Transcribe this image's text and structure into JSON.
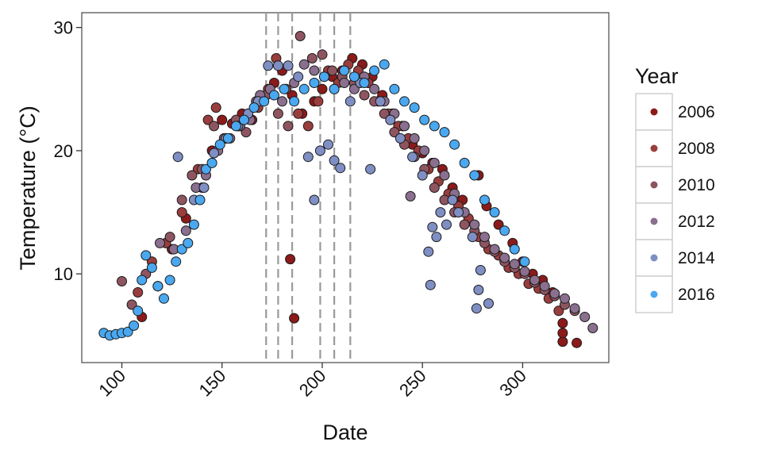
{
  "chart_data": {
    "type": "scatter",
    "xlabel": "Date",
    "ylabel": "Temperature (°C)",
    "xlim": [
      80,
      343
    ],
    "ylim": [
      2.8,
      31.2
    ],
    "x_ticks": [
      100,
      150,
      200,
      250,
      300
    ],
    "y_ticks": [
      10,
      20,
      30
    ],
    "grid": false,
    "legend": {
      "title": "Year",
      "placement": "right",
      "items": [
        {
          "label": "2006",
          "color": "#8b1a1a"
        },
        {
          "label": "2008",
          "color": "#9a3d3d"
        },
        {
          "label": "2010",
          "color": "#8e5561"
        },
        {
          "label": "2012",
          "color": "#8a6f8f"
        },
        {
          "label": "2014",
          "color": "#7f8fc4"
        },
        {
          "label": "2016",
          "color": "#4aa8f0"
        }
      ]
    },
    "vlines": [
      172,
      178,
      185,
      199,
      206,
      214
    ],
    "series": [
      {
        "name": "2006",
        "color": "#8b1a1a",
        "points": [
          [
            110,
            6.5
          ],
          [
            118,
            9
          ],
          [
            125,
            12
          ],
          [
            132,
            14.5
          ],
          [
            140,
            17
          ],
          [
            145,
            20
          ],
          [
            150,
            22.5
          ],
          [
            155,
            22.2
          ],
          [
            160,
            23
          ],
          [
            165,
            22.5
          ],
          [
            170,
            24
          ],
          [
            176,
            25.5
          ],
          [
            180,
            26.5
          ],
          [
            185,
            24.5
          ],
          [
            190,
            23
          ],
          [
            196,
            24
          ],
          [
            200,
            25
          ],
          [
            205,
            26
          ],
          [
            210,
            26.5
          ],
          [
            215,
            27.5
          ],
          [
            220,
            27
          ],
          [
            225,
            26
          ],
          [
            230,
            24.5
          ],
          [
            235,
            23
          ],
          [
            240,
            22
          ],
          [
            245,
            20.5
          ],
          [
            250,
            19.8
          ],
          [
            255,
            19
          ],
          [
            260,
            18.5
          ],
          [
            265,
            17
          ],
          [
            270,
            16
          ],
          [
            278,
            18
          ],
          [
            282,
            15.5
          ],
          [
            288,
            14
          ],
          [
            295,
            12.5
          ],
          [
            300,
            11
          ],
          [
            305,
            10
          ],
          [
            310,
            9.5
          ],
          [
            315,
            8.5
          ],
          [
            320,
            4.5
          ],
          [
            320,
            5.2
          ],
          [
            320,
            6
          ],
          [
            327,
            4.4
          ],
          [
            184,
            11.2
          ],
          [
            186,
            6.4
          ]
        ]
      },
      {
        "name": "2008",
        "color": "#9a3d3d",
        "points": [
          [
            108,
            8.5
          ],
          [
            115,
            11
          ],
          [
            122,
            12.5
          ],
          [
            130,
            15
          ],
          [
            138,
            18.5
          ],
          [
            143,
            22.5
          ],
          [
            147,
            23.5
          ],
          [
            152,
            21
          ],
          [
            158,
            22
          ],
          [
            163,
            23
          ],
          [
            168,
            23.5
          ],
          [
            173,
            25
          ],
          [
            177,
            27.5
          ],
          [
            182,
            25
          ],
          [
            188,
            23
          ],
          [
            193,
            22
          ],
          [
            198,
            24
          ],
          [
            203,
            26.5
          ],
          [
            208,
            25.5
          ],
          [
            213,
            27
          ],
          [
            218,
            26.5
          ],
          [
            223,
            25.5
          ],
          [
            228,
            24
          ],
          [
            233,
            23
          ],
          [
            238,
            22
          ],
          [
            243,
            21
          ],
          [
            248,
            20
          ],
          [
            253,
            18.5
          ],
          [
            258,
            17.5
          ],
          [
            263,
            16.5
          ],
          [
            268,
            15.5
          ],
          [
            273,
            14.5
          ],
          [
            278,
            13
          ],
          [
            283,
            12
          ],
          [
            288,
            11.5
          ],
          [
            293,
            10.5
          ],
          [
            298,
            10
          ],
          [
            303,
            9.2
          ],
          [
            308,
            8.8
          ],
          [
            313,
            8
          ],
          [
            318,
            7
          ]
        ]
      },
      {
        "name": "2010",
        "color": "#8e5561",
        "points": [
          [
            100,
            9.4
          ],
          [
            105,
            7.5
          ],
          [
            112,
            10
          ],
          [
            118,
            9
          ],
          [
            124,
            13
          ],
          [
            130,
            16
          ],
          [
            135,
            18
          ],
          [
            140,
            18.5
          ],
          [
            146,
            22
          ],
          [
            151,
            21
          ],
          [
            157,
            22.5
          ],
          [
            162,
            21.5
          ],
          [
            167,
            24
          ],
          [
            172,
            24.5
          ],
          [
            178,
            23
          ],
          [
            183,
            22
          ],
          [
            189,
            29.3
          ],
          [
            195,
            27.5
          ],
          [
            200,
            27.8
          ],
          [
            205,
            26.5
          ],
          [
            210,
            26
          ],
          [
            216,
            25.5
          ],
          [
            221,
            24.5
          ],
          [
            226,
            24
          ],
          [
            231,
            23
          ],
          [
            236,
            21.5
          ],
          [
            241,
            20.5
          ],
          [
            246,
            19.5
          ],
          [
            251,
            18.5
          ],
          [
            256,
            17
          ],
          [
            261,
            16
          ],
          [
            266,
            15
          ],
          [
            271,
            14
          ],
          [
            276,
            13.5
          ],
          [
            281,
            12.5
          ],
          [
            286,
            11.8
          ],
          [
            291,
            11
          ],
          [
            296,
            10.5
          ],
          [
            301,
            10
          ],
          [
            306,
            9.3
          ],
          [
            311,
            8.7
          ],
          [
            316,
            8.2
          ],
          [
            321,
            7.5
          ],
          [
            326,
            7
          ]
        ]
      },
      {
        "name": "2012",
        "color": "#8a6f8f",
        "points": [
          [
            119,
            12.5
          ],
          [
            126,
            12
          ],
          [
            132,
            13.5
          ],
          [
            137,
            17
          ],
          [
            142,
            18
          ],
          [
            148,
            20
          ],
          [
            154,
            21
          ],
          [
            159,
            22
          ],
          [
            164,
            22.5
          ],
          [
            169,
            24.5
          ],
          [
            174,
            25
          ],
          [
            180,
            24
          ],
          [
            186,
            25.5
          ],
          [
            191,
            27
          ],
          [
            196,
            26.5
          ],
          [
            201,
            26
          ],
          [
            206,
            25
          ],
          [
            211,
            25.5
          ],
          [
            216,
            25
          ],
          [
            221,
            26
          ],
          [
            226,
            25
          ],
          [
            231,
            24
          ],
          [
            236,
            23
          ],
          [
            241,
            22
          ],
          [
            244,
            16.3
          ],
          [
            246,
            21
          ],
          [
            251,
            20
          ],
          [
            256,
            19
          ],
          [
            261,
            18
          ],
          [
            266,
            16.5
          ],
          [
            271,
            15
          ],
          [
            276,
            14
          ],
          [
            281,
            13
          ],
          [
            286,
            12
          ],
          [
            291,
            11.3
          ],
          [
            296,
            10.8
          ],
          [
            301,
            10.2
          ],
          [
            306,
            9.5
          ],
          [
            311,
            9
          ],
          [
            316,
            8.4
          ],
          [
            321,
            8
          ],
          [
            326,
            7.2
          ],
          [
            331,
            6.5
          ],
          [
            335,
            5.6
          ]
        ]
      },
      {
        "name": "2014",
        "color": "#7f8fc4",
        "points": [
          [
            128,
            19.5
          ],
          [
            136,
            16
          ],
          [
            141,
            17
          ],
          [
            146,
            19.8
          ],
          [
            152,
            21
          ],
          [
            158,
            22
          ],
          [
            163,
            23
          ],
          [
            168,
            24
          ],
          [
            173,
            26.9
          ],
          [
            178,
            26.9
          ],
          [
            183,
            26.9
          ],
          [
            188,
            26
          ],
          [
            193,
            19.5
          ],
          [
            196,
            16
          ],
          [
            199,
            20
          ],
          [
            203,
            20.5
          ],
          [
            206,
            19.2
          ],
          [
            209,
            18.6
          ],
          [
            214,
            24
          ],
          [
            219,
            25.5
          ],
          [
            224,
            18.5
          ],
          [
            229,
            24
          ],
          [
            234,
            22.5
          ],
          [
            239,
            21
          ],
          [
            245,
            19.5
          ],
          [
            250,
            18
          ],
          [
            253,
            11.8
          ],
          [
            254,
            9.1
          ],
          [
            255,
            13.8
          ],
          [
            257,
            13
          ],
          [
            259,
            15
          ],
          [
            262,
            14
          ],
          [
            265,
            16
          ],
          [
            268,
            15
          ],
          [
            275,
            13
          ],
          [
            277,
            7.2
          ],
          [
            278,
            8.7
          ],
          [
            279,
            10.3
          ],
          [
            283,
            7.6
          ]
        ]
      },
      {
        "name": "2016",
        "color": "#4aa8f0",
        "points": [
          [
            91,
            5.2
          ],
          [
            94,
            5
          ],
          [
            97,
            5.1
          ],
          [
            100,
            5.2
          ],
          [
            103,
            5.3
          ],
          [
            106,
            5.8
          ],
          [
            108,
            7
          ],
          [
            110,
            9.5
          ],
          [
            112,
            11.5
          ],
          [
            115,
            10.5
          ],
          [
            118,
            9
          ],
          [
            121,
            8
          ],
          [
            124,
            9.5
          ],
          [
            127,
            11
          ],
          [
            130,
            12
          ],
          [
            133,
            12.5
          ],
          [
            136,
            14
          ],
          [
            139,
            16
          ],
          [
            142,
            18.5
          ],
          [
            145,
            19
          ],
          [
            149,
            20.5
          ],
          [
            153,
            21
          ],
          [
            157,
            22
          ],
          [
            161,
            22.5
          ],
          [
            166,
            23.5
          ],
          [
            171,
            24
          ],
          [
            176,
            24.5
          ],
          [
            181,
            25
          ],
          [
            186,
            24
          ],
          [
            191,
            25
          ],
          [
            196,
            25.5
          ],
          [
            201,
            26
          ],
          [
            206,
            25
          ],
          [
            211,
            26.5
          ],
          [
            216,
            26
          ],
          [
            221,
            25.5
          ],
          [
            226,
            26.5
          ],
          [
            231,
            27
          ],
          [
            236,
            25
          ],
          [
            241,
            24
          ],
          [
            246,
            23.5
          ],
          [
            251,
            22.5
          ],
          [
            256,
            22
          ],
          [
            261,
            21.5
          ],
          [
            266,
            20.5
          ],
          [
            271,
            19
          ],
          [
            276,
            18
          ],
          [
            281,
            16
          ],
          [
            286,
            15
          ],
          [
            291,
            13.5
          ],
          [
            296,
            12
          ],
          [
            301,
            11
          ]
        ]
      }
    ]
  }
}
